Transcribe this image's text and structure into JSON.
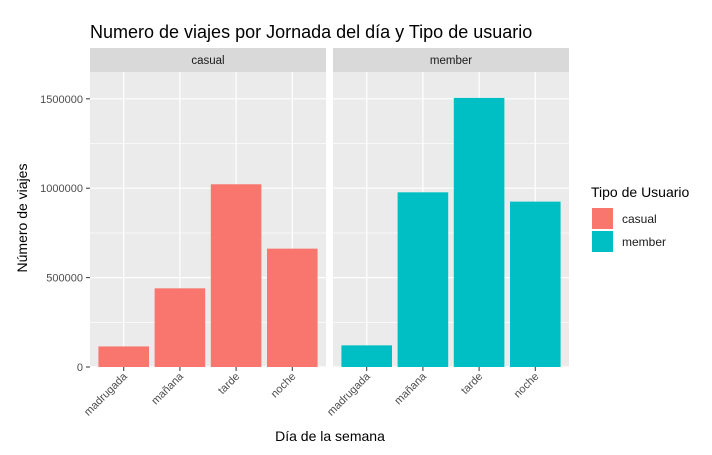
{
  "chart_data": {
    "type": "bar",
    "title": "Numero de viajes por Jornada del día y Tipo de usuario",
    "xlabel": "Día de la semana",
    "ylabel": "Número de viajes",
    "categories": [
      "madrugada",
      "mañana",
      "tarde",
      "noche"
    ],
    "ylim": [
      0,
      1650000
    ],
    "yticks": [
      0,
      500000,
      1000000,
      1500000
    ],
    "ytick_labels": [
      "0",
      "500000",
      "1000000",
      "1500000"
    ],
    "grid": true,
    "legend": {
      "title": "Tipo de Usuario",
      "position": "right"
    },
    "series": [
      {
        "name": "casual",
        "color": "#F8766D",
        "values": [
          115000,
          440000,
          1022000,
          662000
        ]
      },
      {
        "name": "member",
        "color": "#00BFC4",
        "values": [
          121000,
          977000,
          1505000,
          925000
        ]
      }
    ],
    "facets": [
      "casual",
      "member"
    ],
    "colors": {
      "panel_bg": "#EBEBEB",
      "strip_bg": "#D9D9D9",
      "grid": "#FFFFFF"
    }
  }
}
